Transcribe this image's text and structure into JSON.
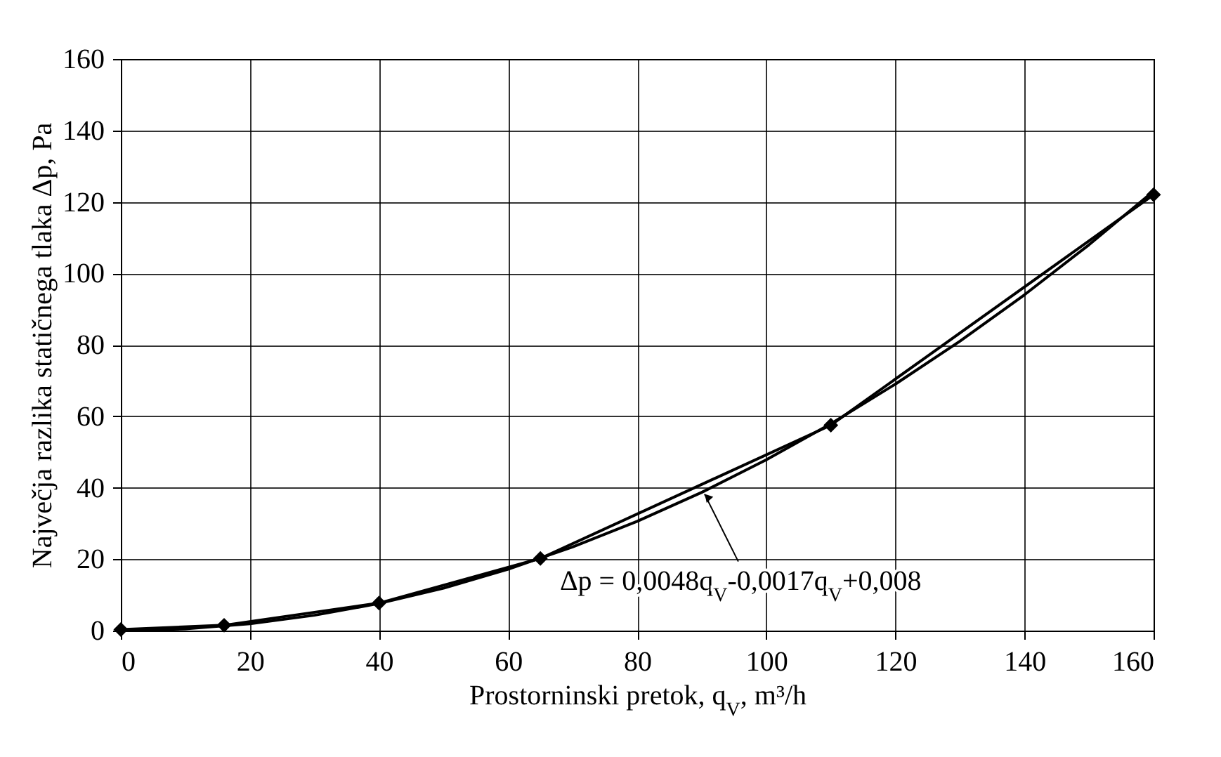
{
  "chart_data": {
    "type": "line",
    "xlabel": "Prostorninski pretok, q$_{V}$,  m³/h",
    "ylabel": "Največja razlika statičnega tlaka Δp,  Pa",
    "xlim": [
      0,
      160
    ],
    "xticks": [
      0,
      20,
      40,
      60,
      80,
      100,
      120,
      140,
      160
    ],
    "ylim": [
      0,
      160
    ],
    "yticks": [
      0,
      20,
      40,
      60,
      80,
      100,
      120,
      140,
      160
    ],
    "grid": true,
    "line_style": "solid",
    "series": [
      {
        "color": "#000000",
        "marker": "diamond",
        "x": [
          0,
          16,
          40,
          65,
          110,
          160
        ],
        "values": [
          0.3,
          1.5,
          7.7,
          20.2,
          57.5,
          122
        ]
      },
      {
        "color": "#000000",
        "marker": "none",
        "x": [
          0,
          10,
          20,
          30,
          40,
          50,
          60,
          70,
          80,
          90,
          100,
          110,
          120,
          130,
          140,
          150,
          160
        ],
        "values": [
          0,
          0.5,
          1.9,
          4.3,
          7.6,
          11.9,
          17.2,
          23.4,
          30.6,
          38.7,
          47.8,
          57.9,
          69,
          81,
          94,
          108,
          123
        ]
      }
    ],
    "annotations": [
      {
        "text": "Δp = 0,0048q$_{V}$-0,0017q$_{V}$+0,008",
        "x": 90,
        "y": 39
      }
    ]
  }
}
